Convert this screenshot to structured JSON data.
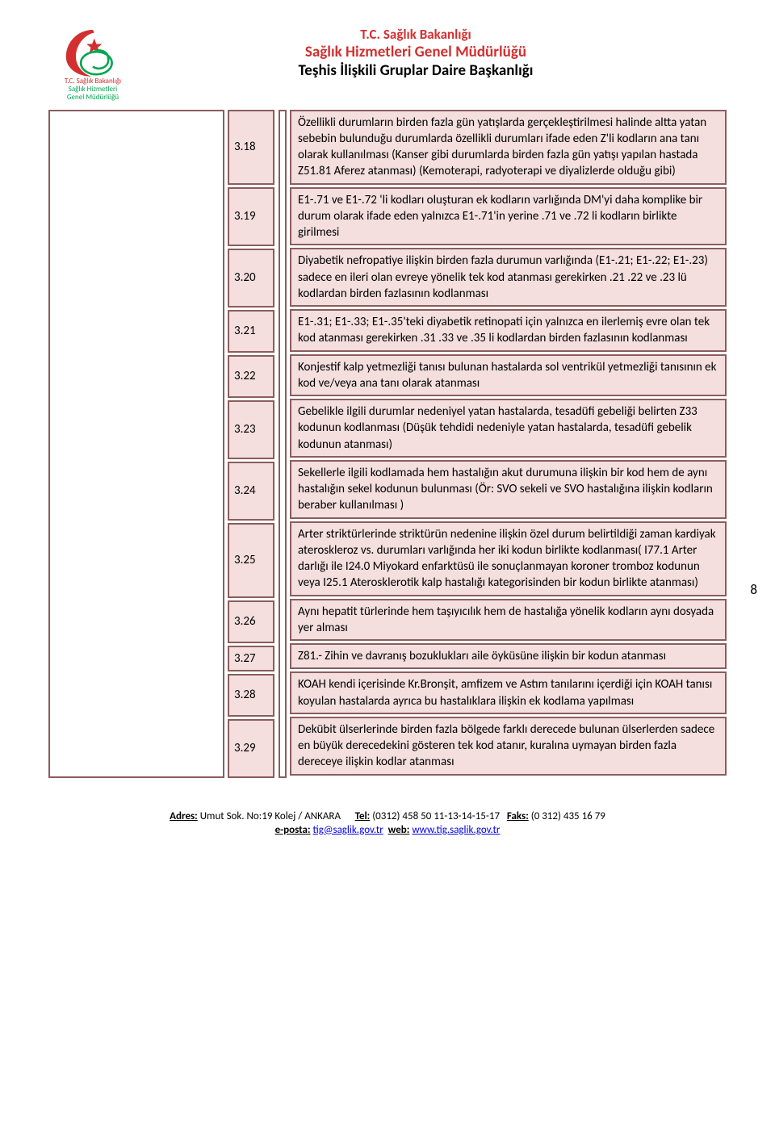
{
  "header": {
    "line1": "T.C. Sağlık Bakanlığı",
    "line2": "Sağlık Hizmetleri Genel Müdürlüğü",
    "line3": "Teşhis İlişkili Gruplar Daire Başkanlığı",
    "logo_caption1": "T.C. Sağlık Bakanlığı",
    "logo_caption2": "Sağlık Hizmetleri",
    "logo_caption3": "Genel Müdürlüğü"
  },
  "page_number": "8",
  "rows": [
    {
      "num": "3.18",
      "desc": "Özellikli durumların birden fazla gün yatışlarda gerçekleştirilmesi halinde altta yatan sebebin bulunduğu durumlarda özellikli durumları ifade eden Z'li kodların ana tanı olarak kullanılması (Kanser gibi durumlarda birden fazla gün yatışı yapılan hastada Z51.81 Aferez atanması) (Kemoterapi, radyoterapi ve diyalizlerde olduğu gibi)"
    },
    {
      "num": "3.19",
      "desc": "E1-.71 ve E1-.72 'li kodları oluşturan ek kodların varlığında DM'yi daha komplike bir durum olarak ifade eden yalnızca E1-.71'in yerine .71 ve .72 li kodların birlikte girilmesi"
    },
    {
      "num": "3.20",
      "desc": "Diyabetik nefropatiye ilişkin birden fazla durumun varlığında (E1-.21; E1-.22; E1-.23) sadece en ileri olan evreye yönelik tek kod atanması gerekirken .21 .22 ve .23 lü kodlardan birden fazlasının kodlanması"
    },
    {
      "num": "3.21",
      "desc": "E1-.31; E1-.33; E1-.35'teki diyabetik retinopati için yalnızca en ilerlemiş evre olan tek kod atanması gerekirken .31 .33 ve .35 li kodlardan birden fazlasının kodlanması"
    },
    {
      "num": "3.22",
      "desc": "Konjestif kalp yetmezliği tanısı bulunan hastalarda sol ventrikül yetmezliği tanısının ek kod ve/veya ana tanı olarak atanması"
    },
    {
      "num": "3.23",
      "desc": "Gebelikle ilgili durumlar nedeniyel yatan hastalarda, tesadüfi gebeliği belirten Z33 kodunun kodlanması (Düşük tehdidi nedeniyle yatan hastalarda, tesadüfi gebelik kodunun atanması)"
    },
    {
      "num": "3.24",
      "desc": "Sekellerle ilgili kodlamada hem hastalığın akut durumuna ilişkin bir kod hem de aynı hastalığın sekel kodunun bulunması (Ör: SVO sekeli ve SVO hastalığına ilişkin kodların beraber kullanılması )"
    },
    {
      "num": "3.25",
      "desc": "Arter striktürlerinde striktürün nedenine ilişkin özel durum belirtildiği zaman kardiyak ateroskleroz vs. durumları varlığında her iki kodun birlikte kodlanması( I77.1  Arter darlığı ile I24.0 Miyokard enfarktüsü ile sonuçlanmayan koroner tromboz kodunun veya I25.1 Aterosklerotik kalp hastalığı kategorisinden bir kodun birlikte atanması)"
    },
    {
      "num": "3.26",
      "desc": "Aynı hepatit türlerinde hem taşıyıcılık hem de hastalığa yönelik kodların aynı dosyada yer alması"
    },
    {
      "num": "3.27",
      "desc": "Z81.- Zihin ve davranış bozuklukları aile öyküsüne ilişkin bir kodun atanması"
    },
    {
      "num": "3.28",
      "desc": "KOAH kendi içerisinde Kr.Bronşit, amfizem ve Astım tanılarını içerdiği için KOAH tanısı koyulan hastalarda ayrıca bu hastalıklara ilişkin ek kodlama yapılması"
    },
    {
      "num": "3.29",
      "desc": "Dekübit ülserlerinde birden fazla bölgede farklı derecede bulunan ülserlerden sadece en büyük derecedekini gösteren tek kod atanır, kuralına uymayan birden fazla dereceye ilişkin kodlar atanması"
    }
  ],
  "footer": {
    "adres_label": "Adres:",
    "adres": "Umut Sok. No:19 Kolej / ANKARA",
    "tel_label": "Tel:",
    "tel": "(0312) 458 50 11-13-14-15-17",
    "faks_label": "Faks:",
    "faks": "(0 312) 435 16 79",
    "eposta_label": "e-posta:",
    "eposta": "tig@saglik.gov.tr",
    "web_label": "web:",
    "web": "www.tig.saglik.gov.tr"
  },
  "colors": {
    "border": "#8a5d5d",
    "cell_bg": "#f4dede",
    "header_red": "#d32f2f"
  }
}
